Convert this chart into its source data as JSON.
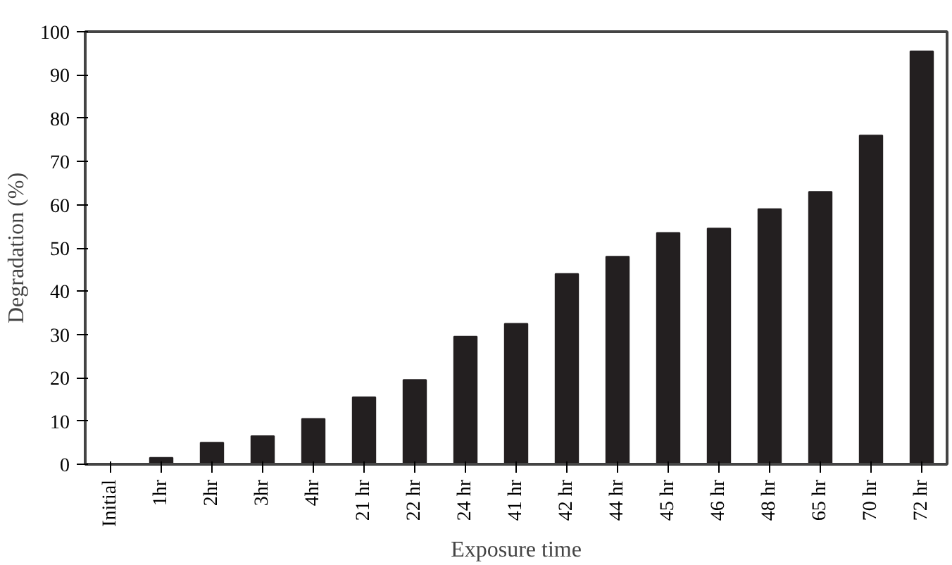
{
  "chart_data": {
    "type": "bar",
    "xlabel": "Exposure time",
    "ylabel": "Degradation (%)",
    "categories": [
      "Initial",
      "1hr",
      "2hr",
      "3hr",
      "4hr",
      "21 hr",
      "22 hr",
      "24 hr",
      "41 hr",
      "42 hr",
      "44 hr",
      "45 hr",
      "46 hr",
      "48 hr",
      "65 hr",
      "70 hr",
      "72 hr"
    ],
    "values": [
      0,
      1.5,
      5,
      6.5,
      10.5,
      15.5,
      19.5,
      29.5,
      32.5,
      44,
      48,
      53.5,
      54.5,
      59,
      63,
      76,
      95.5
    ],
    "color": "#231f20",
    "ylim": [
      0,
      100
    ],
    "yticks": [
      0,
      10,
      20,
      30,
      40,
      50,
      60,
      70,
      80,
      90,
      100
    ],
    "grid": false
  }
}
